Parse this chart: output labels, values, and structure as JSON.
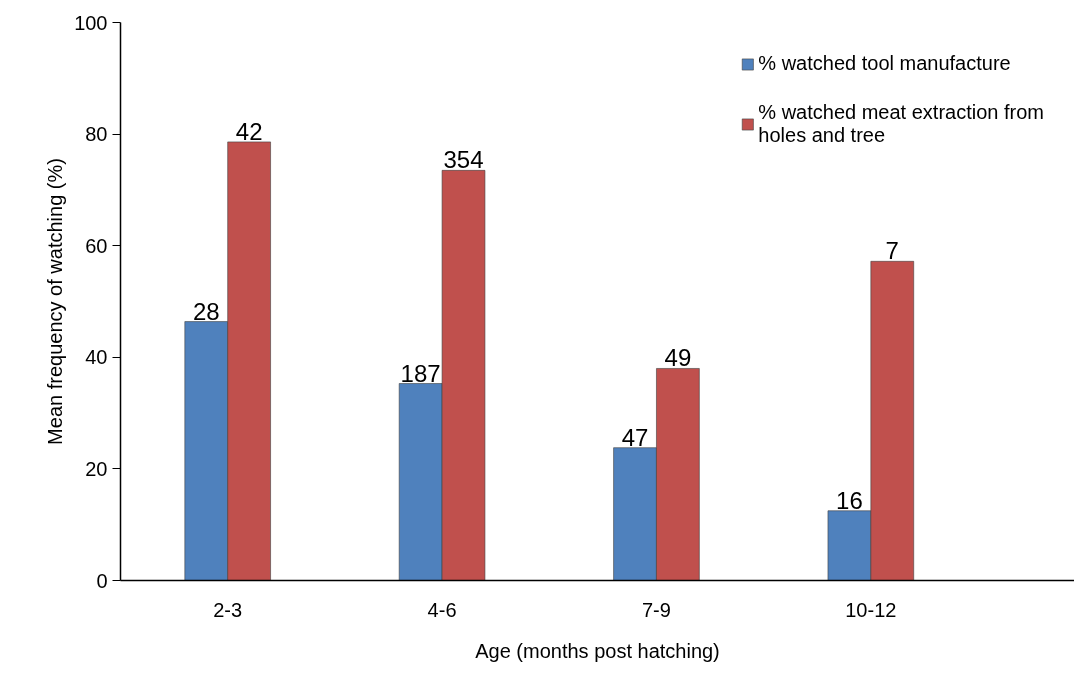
{
  "chart_data": {
    "type": "bar",
    "xlabel": "Age (months post hatching)",
    "ylabel": "Mean frequency of watching (%)",
    "categories": [
      "2-3",
      "4-6",
      "7-9",
      "10-12"
    ],
    "series": [
      {
        "name": "% watched tool manufacture",
        "color": "#4f81bd",
        "values": [
          46.4,
          35.3,
          23.8,
          12.5
        ]
      },
      {
        "name": "% watched meat extraction from holes and tree",
        "color": "#c0504d",
        "values": [
          78.6,
          73.5,
          38.0,
          57.2
        ]
      }
    ],
    "annotations": [
      {
        "text": "28",
        "x": "2-3",
        "y": 46.4
      },
      {
        "text": "42",
        "x": "2-3",
        "y": 78.6
      },
      {
        "text": "187",
        "x": "4-6",
        "y": 35.3
      },
      {
        "text": "354",
        "x": "4-6",
        "y": 73.5
      },
      {
        "text": "47",
        "x": "7-9",
        "y": 23.8
      },
      {
        "text": "49",
        "x": "7-9",
        "y": 38.0
      },
      {
        "text": "16",
        "x": "10-12",
        "y": 12.5
      },
      {
        "text": "7",
        "x": "10-12",
        "y": 57.2
      }
    ],
    "ylim": [
      0,
      100
    ],
    "yticks": [
      0,
      20,
      40,
      60,
      80,
      100
    ],
    "grid": false,
    "legend": "top right"
  }
}
